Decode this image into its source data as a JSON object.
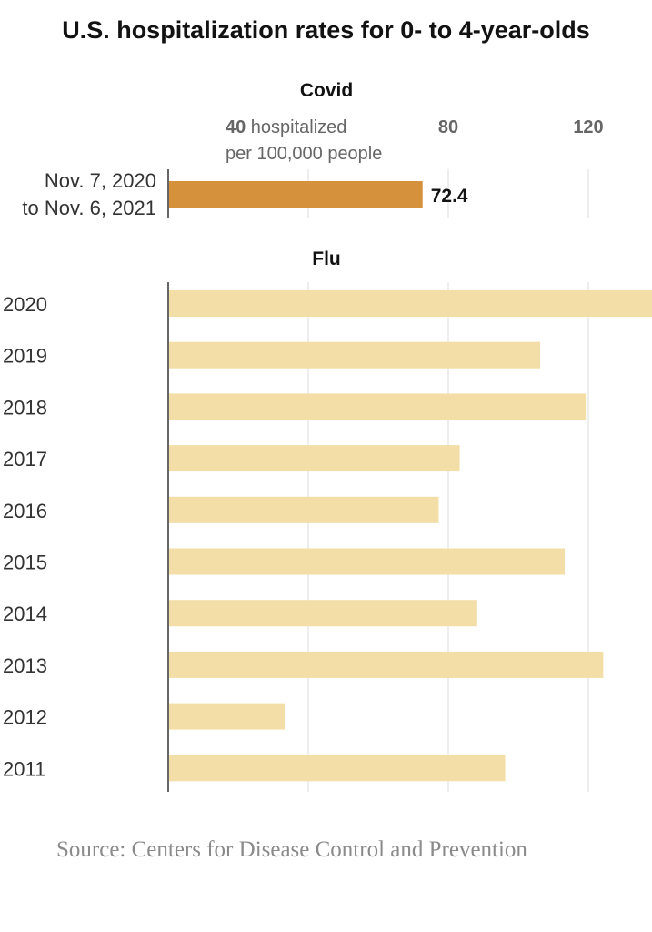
{
  "title": "U.S. hospitalization rates for 0- to 4-year-olds",
  "source": "Source: Centers for Disease Control and Prevention",
  "colors": {
    "covid": "#d6913c",
    "flu": "#f2dea6",
    "grid": "#dddddd",
    "axis": "#333333",
    "tick": "#666666"
  },
  "chart_data": [
    {
      "type": "bar",
      "orientation": "horizontal",
      "title": "Covid",
      "x_ticks": [
        {
          "value": 40,
          "label": "40",
          "unit": " hospitalized",
          "unit2": "per 100,000 people"
        },
        {
          "value": 80,
          "label": "80"
        },
        {
          "value": 120,
          "label": "120"
        }
      ],
      "xlim": [
        0,
        138
      ],
      "grid": true,
      "categories": [
        {
          "line1": "Nov. 7, 2020",
          "line2": "to Nov. 6, 2021"
        }
      ],
      "values": [
        72.4
      ],
      "data_labels": [
        "72.4"
      ]
    },
    {
      "type": "bar",
      "orientation": "horizontal",
      "title": "Flu",
      "xlim": [
        0,
        138
      ],
      "grid": true,
      "categories": [
        "2020",
        "2019",
        "2018",
        "2017",
        "2016",
        "2015",
        "2014",
        "2013",
        "2012",
        "2011"
      ],
      "values": [
        138,
        106,
        119,
        83,
        77,
        113,
        88,
        124,
        33,
        96
      ]
    }
  ]
}
